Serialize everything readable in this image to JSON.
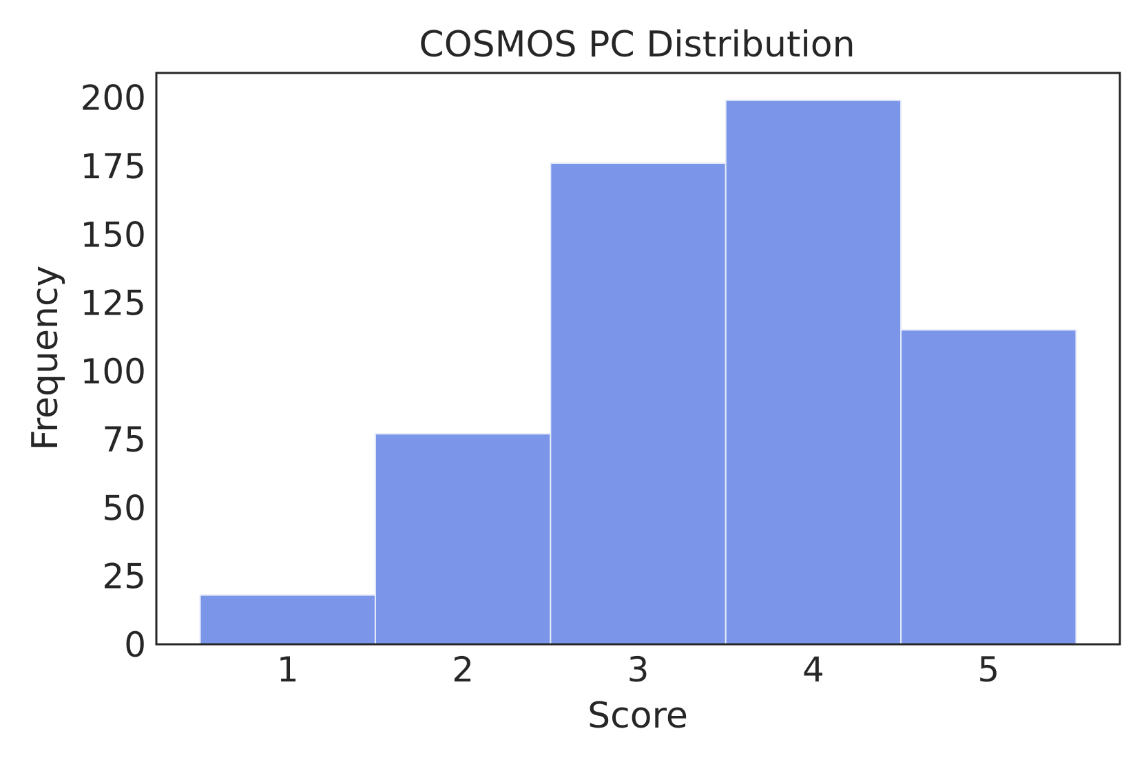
{
  "chart_data": {
    "type": "bar",
    "title": "COSMOS PC Distribution",
    "xlabel": "Score",
    "ylabel": "Frequency",
    "categories": [
      "1",
      "2",
      "3",
      "4",
      "5"
    ],
    "values": [
      18,
      77,
      176,
      199,
      115
    ],
    "xlim": [
      0.25,
      5.75
    ],
    "ylim": [
      0,
      209
    ],
    "yticks": [
      0,
      25,
      50,
      75,
      100,
      125,
      150,
      175,
      200
    ],
    "grid": false,
    "bar_color": "#7b96e8",
    "bar_edge_color": "#e6ebfa",
    "axis_color": "#262626"
  }
}
